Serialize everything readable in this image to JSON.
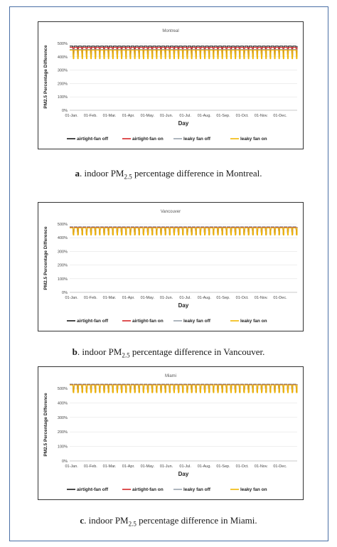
{
  "chart_data": [
    {
      "type": "line",
      "title": "Montreal",
      "xlabel": "Day",
      "ylabel": "PM2.5 Percentage Difference",
      "yticks": [
        "0%",
        "100%",
        "200%",
        "300%",
        "400%",
        "500%"
      ],
      "ylim": [
        0,
        500
      ],
      "categories": [
        "01-Jan.",
        "01-Feb.",
        "01-Mar.",
        "01-Apr.",
        "01-May.",
        "01-Jun.",
        "01-Jul.",
        "01-Aug.",
        "01-Sep.",
        "01-Oct.",
        "01-Nov.",
        "01-Dec."
      ],
      "cycles_per_year": 52,
      "series": [
        {
          "name": "airtight-fan off",
          "color": "#1a1a1a",
          "peak": 480,
          "trough": 410
        },
        {
          "name": "airtight-fan on",
          "color": "#d62728",
          "peak": 470,
          "trough": 405
        },
        {
          "name": "leaky fan off",
          "color": "#9aa3ad",
          "peak": 455,
          "trough": 400
        },
        {
          "name": "leaky fan on",
          "color": "#f2b705",
          "peak": 450,
          "trough": 385
        }
      ],
      "caption_letter": "a",
      "caption_pre": ". indoor PM",
      "caption_sub": "2.5",
      "caption_post": " percentage difference in Montreal."
    },
    {
      "type": "line",
      "title": "Vancouver",
      "xlabel": "Day",
      "ylabel": "PM2.5 Percentage Difference",
      "yticks": [
        "0%",
        "100%",
        "200%",
        "300%",
        "400%",
        "500%"
      ],
      "ylim": [
        0,
        500
      ],
      "categories": [
        "01-Jan.",
        "01-Feb.",
        "01-Mar.",
        "01-Apr.",
        "01-May.",
        "01-Jun.",
        "01-Jul.",
        "01-Aug.",
        "01-Sep.",
        "01-Oct.",
        "01-Nov.",
        "01-Dec."
      ],
      "cycles_per_year": 52,
      "series": [
        {
          "name": "airtight-fan off",
          "color": "#1a1a1a",
          "peak": 478,
          "trough": 425
        },
        {
          "name": "airtight-fan on",
          "color": "#d62728",
          "peak": 476,
          "trough": 423
        },
        {
          "name": "leaky fan off",
          "color": "#9aa3ad",
          "peak": 474,
          "trough": 421
        },
        {
          "name": "leaky fan on",
          "color": "#f2b705",
          "peak": 472,
          "trough": 420
        }
      ],
      "caption_letter": "b",
      "caption_pre": ". indoor PM",
      "caption_sub": "2.5",
      "caption_post": " percentage difference in Vancouver."
    },
    {
      "type": "line",
      "title": "Miami",
      "xlabel": "Day",
      "ylabel": "PM2.5 Percentage Difference",
      "yticks": [
        "0%",
        "100%",
        "200%",
        "300%",
        "400%",
        "500%"
      ],
      "ylim": [
        0,
        500
      ],
      "categories": [
        "01-Jan.",
        "01-Feb.",
        "01-Mar.",
        "01-Apr.",
        "01-May.",
        "01-Jun.",
        "01-Jul.",
        "01-Aug.",
        "01-Sep.",
        "01-Oct.",
        "01-Nov.",
        "01-Dec."
      ],
      "cycles_per_year": 52,
      "series": [
        {
          "name": "airtight-fan off",
          "color": "#1a1a1a",
          "peak": 528,
          "trough": 475
        },
        {
          "name": "airtight-fan on",
          "color": "#d62728",
          "peak": 526,
          "trough": 473
        },
        {
          "name": "leaky fan off",
          "color": "#9aa3ad",
          "peak": 525,
          "trough": 472
        },
        {
          "name": "leaky fan on",
          "color": "#f2b705",
          "peak": 523,
          "trough": 470
        }
      ],
      "caption_letter": "c",
      "caption_pre": ". indoor PM",
      "caption_sub": "2.5",
      "caption_post": " percentage difference in Miami."
    }
  ]
}
